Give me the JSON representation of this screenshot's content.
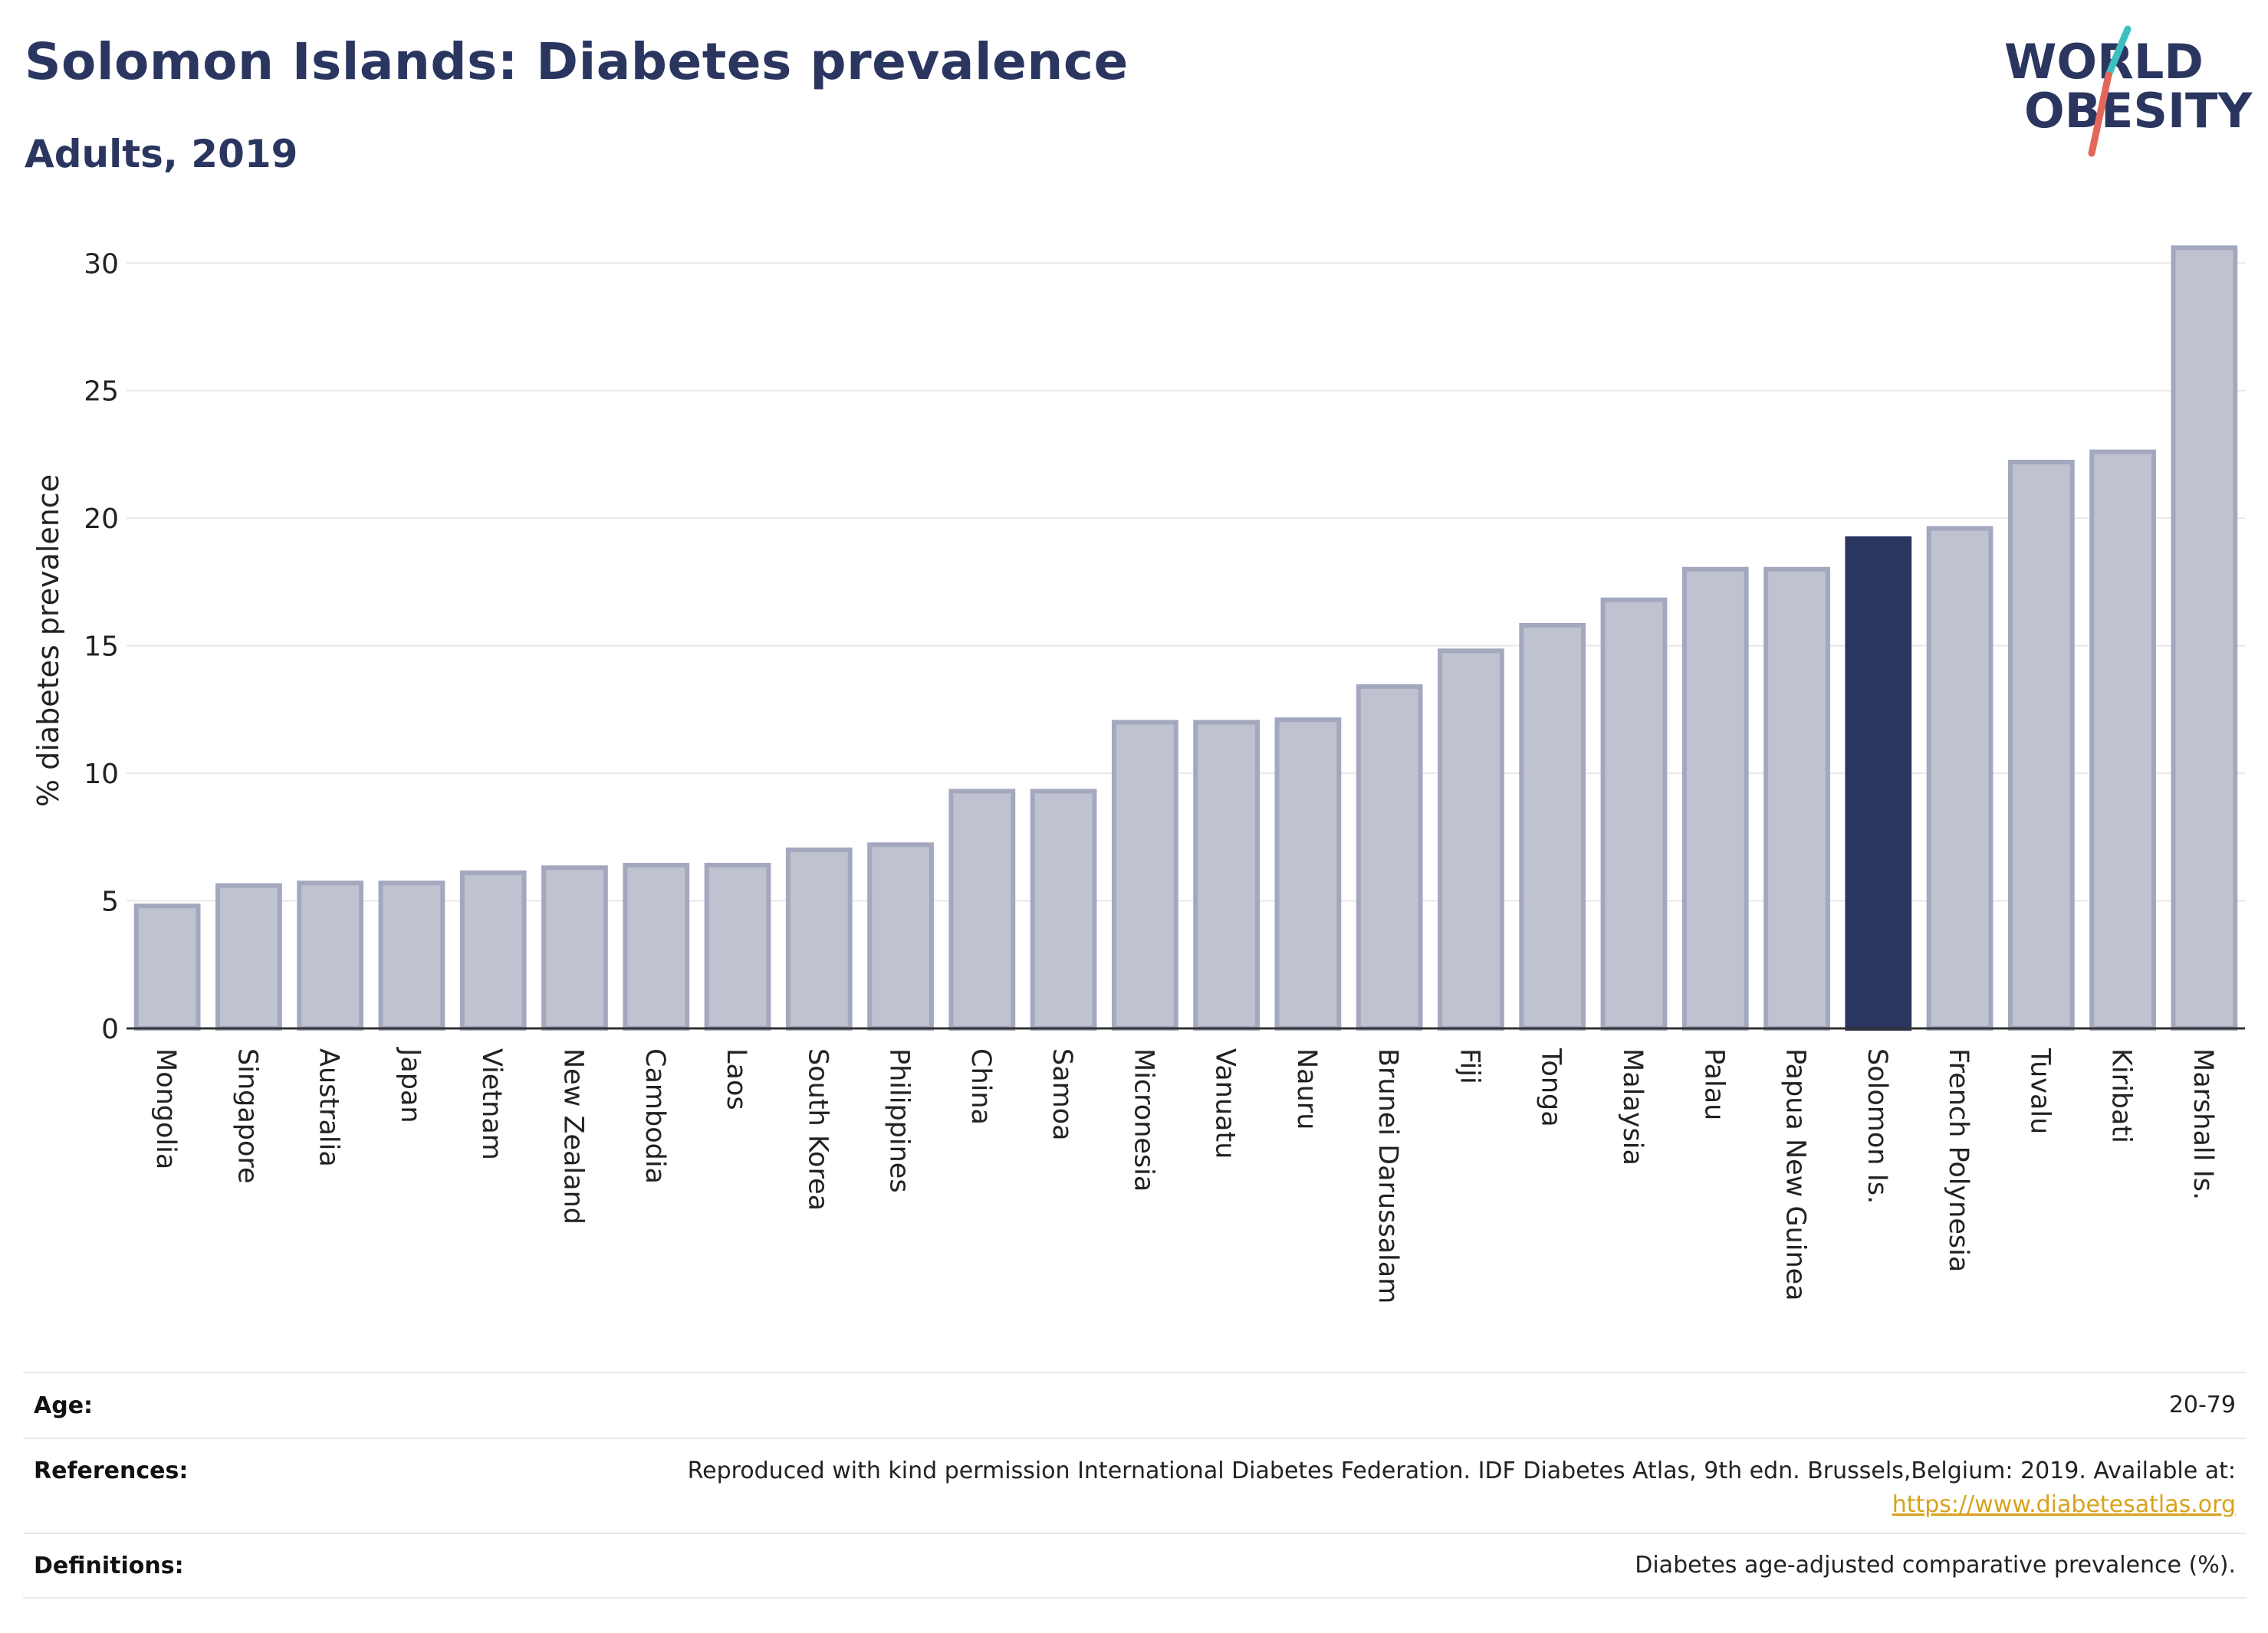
{
  "header": {
    "title": "Solomon Islands: Diabetes prevalence",
    "subtitle": "Adults, 2019"
  },
  "logo": {
    "line1": "WORLD",
    "line2": "OBESITY"
  },
  "colors": {
    "bar_default": "#bfc2cf",
    "bar_border": "#a3a8bf",
    "bar_highlight": "#2a3660",
    "axis": "#333333",
    "grid": "#e8e8ec",
    "title": "#2a3660",
    "logo_teal": "#3dbfbf",
    "logo_red": "#e2675a",
    "link": "#d9a21b"
  },
  "chart_data": {
    "type": "bar",
    "ylabel": "% diabetes prevalence",
    "ylim": [
      0,
      31
    ],
    "yticks": [
      0,
      5,
      10,
      15,
      20,
      25,
      30
    ],
    "grid": true,
    "highlight": "Solomon Is.",
    "categories": [
      "Mongolia",
      "Singapore",
      "Australia",
      "Japan",
      "Vietnam",
      "New Zealand",
      "Cambodia",
      "Laos",
      "South Korea",
      "Philippines",
      "China",
      "Samoa",
      "Micronesia",
      "Vanuatu",
      "Nauru",
      "Brunei Darussalam",
      "Fiji",
      "Tonga",
      "Malaysia",
      "Palau",
      "Papua New Guinea",
      "Solomon Is.",
      "French Polynesia",
      "Tuvalu",
      "Kiribati",
      "Marshall Is."
    ],
    "values": [
      4.8,
      5.6,
      5.7,
      5.7,
      6.1,
      6.3,
      6.4,
      6.4,
      7.0,
      7.2,
      9.3,
      9.3,
      12.0,
      12.0,
      12.1,
      13.4,
      14.8,
      15.8,
      16.8,
      18.0,
      18.0,
      19.2,
      19.6,
      22.2,
      22.6,
      30.6
    ]
  },
  "footer": {
    "age_label": "Age:",
    "age_value": "20-79",
    "references_label": "References:",
    "references_text": "Reproduced with kind permission International Diabetes Federation. IDF Diabetes Atlas, 9th edn. Brussels,Belgium: 2019. Available at:",
    "references_link": "https://www.diabetesatlas.org",
    "definitions_label": "Definitions:",
    "definitions_value": "Diabetes age-adjusted comparative prevalence (%)."
  }
}
